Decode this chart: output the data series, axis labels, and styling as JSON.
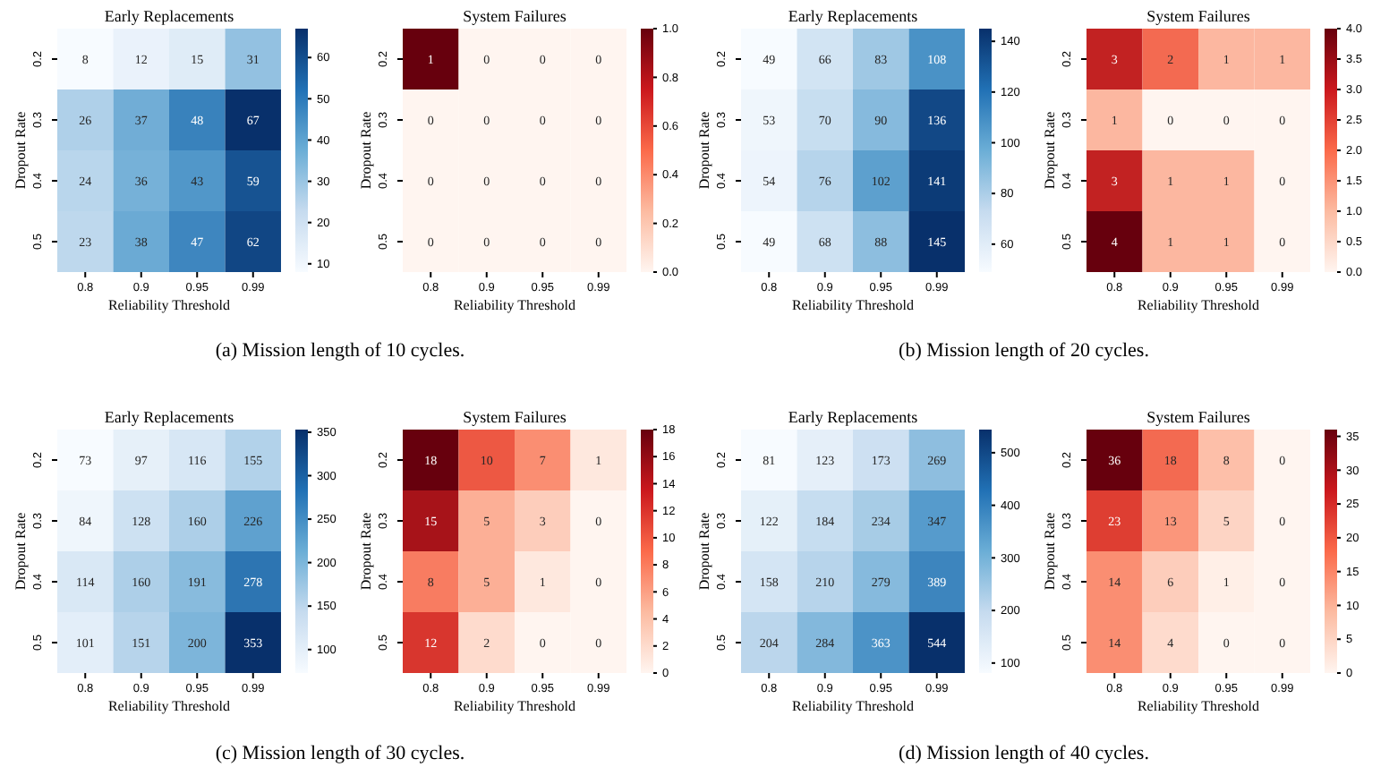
{
  "chart_data": [
    {
      "type": "heatmap",
      "title": "Early Replacements",
      "xlabel": "Reliability Threshold",
      "ylabel": "Dropout Rate",
      "categories": [
        "0.8",
        "0.9",
        "0.95",
        "0.99"
      ],
      "y_categories": [
        "0.2",
        "0.3",
        "0.4",
        "0.5"
      ],
      "cells": [
        [
          8,
          12,
          15,
          31
        ],
        [
          26,
          37,
          48,
          67
        ],
        [
          24,
          36,
          43,
          59
        ],
        [
          23,
          38,
          47,
          62
        ]
      ],
      "clim": [
        8,
        67
      ],
      "cticks": [
        10,
        20,
        30,
        40,
        50,
        60
      ],
      "colors": [
        "#f7fbff",
        "#c6dbef",
        "#6baed6",
        "#2171b5",
        "#08306b"
      ],
      "data_labels": true,
      "annotations": [
        "(a) Mission length of 10 cycles."
      ]
    },
    {
      "type": "heatmap",
      "title": "System Failures",
      "xlabel": "Reliability Threshold",
      "ylabel": "Dropout Rate",
      "categories": [
        "0.8",
        "0.9",
        "0.95",
        "0.99"
      ],
      "y_categories": [
        "0.2",
        "0.3",
        "0.4",
        "0.5"
      ],
      "cells": [
        [
          1,
          0,
          0,
          0
        ],
        [
          0,
          0,
          0,
          0
        ],
        [
          0,
          0,
          0,
          0
        ],
        [
          0,
          0,
          0,
          0
        ]
      ],
      "clim": [
        0,
        1
      ],
      "cticks": [
        {
          "value": 0,
          "label": "0.0"
        },
        {
          "value": 0.2,
          "label": "0.2"
        },
        {
          "value": 0.4,
          "label": "0.4"
        },
        {
          "value": 0.6,
          "label": "0.6"
        },
        {
          "value": 0.8,
          "label": "0.8"
        },
        {
          "value": 1,
          "label": "1.0"
        }
      ],
      "colors": [
        "#fff5f0",
        "#fcbba1",
        "#fb6a4a",
        "#cb181d",
        "#67000d"
      ],
      "data_labels": true
    },
    {
      "type": "heatmap",
      "title": "Early Replacements",
      "xlabel": "Reliability Threshold",
      "ylabel": "Dropout Rate",
      "categories": [
        "0.8",
        "0.9",
        "0.95",
        "0.99"
      ],
      "y_categories": [
        "0.2",
        "0.3",
        "0.4",
        "0.5"
      ],
      "cells": [
        [
          49,
          66,
          83,
          108
        ],
        [
          53,
          70,
          90,
          136
        ],
        [
          54,
          76,
          102,
          141
        ],
        [
          49,
          68,
          88,
          145
        ]
      ],
      "clim": [
        49,
        145
      ],
      "cticks": [
        60,
        80,
        100,
        120,
        140
      ],
      "colors": [
        "#f7fbff",
        "#c6dbef",
        "#6baed6",
        "#2171b5",
        "#08306b"
      ],
      "data_labels": true,
      "annotations": [
        "(b) Mission length of 20 cycles."
      ]
    },
    {
      "type": "heatmap",
      "title": "System Failures",
      "xlabel": "Reliability Threshold",
      "ylabel": "Dropout Rate",
      "categories": [
        "0.8",
        "0.9",
        "0.95",
        "0.99"
      ],
      "y_categories": [
        "0.2",
        "0.3",
        "0.4",
        "0.5"
      ],
      "cells": [
        [
          3,
          2,
          1,
          1
        ],
        [
          1,
          0,
          0,
          0
        ],
        [
          3,
          1,
          1,
          0
        ],
        [
          4,
          1,
          1,
          0
        ]
      ],
      "clim": [
        0,
        4
      ],
      "cticks": [
        {
          "value": 0,
          "label": "0.0"
        },
        {
          "value": 0.5,
          "label": "0.5"
        },
        {
          "value": 1,
          "label": "1.0"
        },
        {
          "value": 1.5,
          "label": "1.5"
        },
        {
          "value": 2,
          "label": "2.0"
        },
        {
          "value": 2.5,
          "label": "2.5"
        },
        {
          "value": 3,
          "label": "3.0"
        },
        {
          "value": 3.5,
          "label": "3.5"
        },
        {
          "value": 4,
          "label": "4.0"
        }
      ],
      "colors": [
        "#fff5f0",
        "#fcbba1",
        "#fb6a4a",
        "#cb181d",
        "#67000d"
      ],
      "data_labels": true
    },
    {
      "type": "heatmap",
      "title": "Early Replacements",
      "xlabel": "Reliability Threshold",
      "ylabel": "Dropout Rate",
      "categories": [
        "0.8",
        "0.9",
        "0.95",
        "0.99"
      ],
      "y_categories": [
        "0.2",
        "0.3",
        "0.4",
        "0.5"
      ],
      "cells": [
        [
          73,
          97,
          116,
          155
        ],
        [
          84,
          128,
          160,
          226
        ],
        [
          114,
          160,
          191,
          278
        ],
        [
          101,
          151,
          200,
          353
        ]
      ],
      "clim": [
        73,
        353
      ],
      "cticks": [
        100,
        150,
        200,
        250,
        300,
        350
      ],
      "colors": [
        "#f7fbff",
        "#c6dbef",
        "#6baed6",
        "#2171b5",
        "#08306b"
      ],
      "data_labels": true,
      "annotations": [
        "(c) Mission length of 30 cycles."
      ]
    },
    {
      "type": "heatmap",
      "title": "System Failures",
      "xlabel": "Reliability Threshold",
      "ylabel": "Dropout Rate",
      "categories": [
        "0.8",
        "0.9",
        "0.95",
        "0.99"
      ],
      "y_categories": [
        "0.2",
        "0.3",
        "0.4",
        "0.5"
      ],
      "cells": [
        [
          18,
          10,
          7,
          1
        ],
        [
          15,
          5,
          3,
          0
        ],
        [
          8,
          5,
          1,
          0
        ],
        [
          12,
          2,
          0,
          0
        ]
      ],
      "clim": [
        0,
        18
      ],
      "cticks": [
        0,
        2,
        4,
        6,
        8,
        10,
        12,
        14,
        16,
        18
      ],
      "colors": [
        "#fff5f0",
        "#fcbba1",
        "#fb6a4a",
        "#cb181d",
        "#67000d"
      ],
      "data_labels": true
    },
    {
      "type": "heatmap",
      "title": "Early Replacements",
      "xlabel": "Reliability Threshold",
      "ylabel": "Dropout Rate",
      "categories": [
        "0.8",
        "0.9",
        "0.95",
        "0.99"
      ],
      "y_categories": [
        "0.2",
        "0.3",
        "0.4",
        "0.5"
      ],
      "cells": [
        [
          81,
          123,
          173,
          269
        ],
        [
          122,
          184,
          234,
          347
        ],
        [
          158,
          210,
          279,
          389
        ],
        [
          204,
          284,
          363,
          544
        ]
      ],
      "clim": [
        81,
        544
      ],
      "cticks": [
        100,
        200,
        300,
        400,
        500
      ],
      "colors": [
        "#f7fbff",
        "#c6dbef",
        "#6baed6",
        "#2171b5",
        "#08306b"
      ],
      "data_labels": true,
      "annotations": [
        "(d) Mission length of 40 cycles."
      ]
    },
    {
      "type": "heatmap",
      "title": "System Failures",
      "xlabel": "Reliability Threshold",
      "ylabel": "Dropout Rate",
      "categories": [
        "0.8",
        "0.9",
        "0.95",
        "0.99"
      ],
      "y_categories": [
        "0.2",
        "0.3",
        "0.4",
        "0.5"
      ],
      "cells": [
        [
          36,
          18,
          8,
          0
        ],
        [
          23,
          13,
          5,
          0
        ],
        [
          14,
          6,
          1,
          0
        ],
        [
          14,
          4,
          0,
          0
        ]
      ],
      "clim": [
        0,
        36
      ],
      "cticks": [
        0,
        5,
        10,
        15,
        20,
        25,
        30,
        35
      ],
      "colors": [
        "#fff5f0",
        "#fcbba1",
        "#fb6a4a",
        "#cb181d",
        "#67000d"
      ],
      "data_labels": true
    }
  ]
}
